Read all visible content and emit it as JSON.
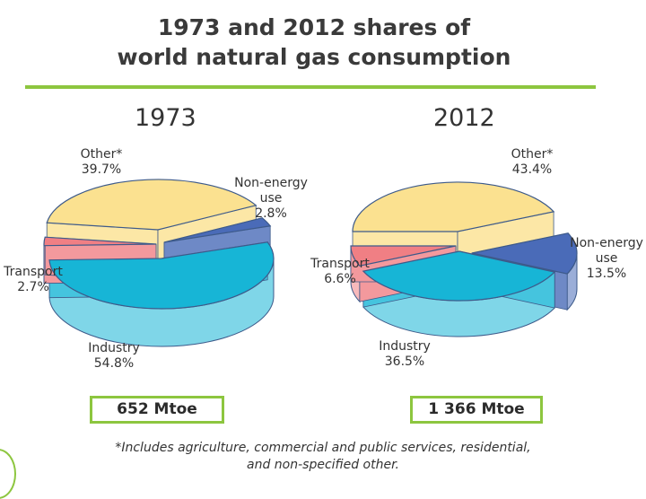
{
  "title": {
    "line1": "1973 and 2012 shares of",
    "line2": "world natural gas consumption"
  },
  "chart_data": [
    {
      "type": "pie",
      "title": "1973",
      "total": "652 Mtoe",
      "slices": [
        {
          "name": "Other*",
          "value": 39.7,
          "label": "39.7%",
          "color": "#fbe190"
        },
        {
          "name": "Non-energy use",
          "value": 2.8,
          "label": "2.8%",
          "color": "#4a6bb8"
        },
        {
          "name": "Industry",
          "value": 54.8,
          "label": "54.8%",
          "color": "#17b5d6"
        },
        {
          "name": "Transport",
          "value": 2.7,
          "label": "2.7%",
          "color": "#f07f84"
        }
      ]
    },
    {
      "type": "pie",
      "title": "2012",
      "total": "1 366 Mtoe",
      "slices": [
        {
          "name": "Other*",
          "value": 43.4,
          "label": "43.4%",
          "color": "#fbe190"
        },
        {
          "name": "Non-energy use",
          "value": 13.5,
          "label": "13.5%",
          "color": "#4a6bb8"
        },
        {
          "name": "Industry",
          "value": 36.5,
          "label": "36.5%",
          "color": "#17b5d6"
        },
        {
          "name": "Transport",
          "value": 6.6,
          "label": "6.6%",
          "color": "#f07f84"
        }
      ]
    }
  ],
  "labels": {
    "other": "Other*",
    "non_energy_l1": "Non-energy",
    "non_energy_use": "use",
    "transport": "Transport",
    "industry": "Industry"
  },
  "footnote": {
    "line1": "*Includes agriculture, commercial and public services, residential,",
    "line2": "and non-specified other."
  },
  "colors": {
    "accent": "#8dc63f"
  }
}
